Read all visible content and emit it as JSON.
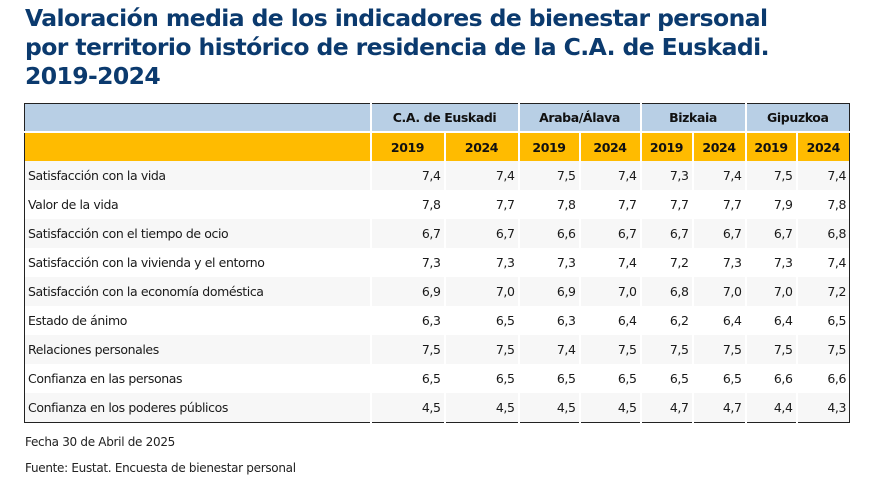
{
  "title": "Valoración media de los indicadores de bienestar personal por territorio histórico de residencia de la C.A. de Euskadi. 2019-2024",
  "table": {
    "regions": [
      "C.A. de Euskadi",
      "Araba/Álava",
      "Bizkaia",
      "Gipuzkoa"
    ],
    "years": [
      "2019",
      "2024",
      "2019",
      "2024",
      "2019",
      "2024",
      "2019",
      "2024"
    ],
    "rows": [
      {
        "label": "Satisfacción con la vida",
        "values": [
          "7,4",
          "7,4",
          "7,5",
          "7,4",
          "7,3",
          "7,4",
          "7,5",
          "7,4"
        ]
      },
      {
        "label": "Valor de la vida",
        "values": [
          "7,8",
          "7,7",
          "7,8",
          "7,7",
          "7,7",
          "7,7",
          "7,9",
          "7,8"
        ]
      },
      {
        "label": "Satisfacción con el tiempo de ocio",
        "values": [
          "6,7",
          "6,7",
          "6,6",
          "6,7",
          "6,7",
          "6,7",
          "6,7",
          "6,8"
        ]
      },
      {
        "label": "Satisfacción con la vivienda y el entorno",
        "values": [
          "7,3",
          "7,3",
          "7,3",
          "7,4",
          "7,2",
          "7,3",
          "7,3",
          "7,4"
        ]
      },
      {
        "label": "Satisfacción con la economía doméstica",
        "values": [
          "6,9",
          "7,0",
          "6,9",
          "7,0",
          "6,8",
          "7,0",
          "7,0",
          "7,2"
        ]
      },
      {
        "label": "Estado de ánimo",
        "values": [
          "6,3",
          "6,5",
          "6,3",
          "6,4",
          "6,2",
          "6,4",
          "6,4",
          "6,5"
        ]
      },
      {
        "label": "Relaciones personales",
        "values": [
          "7,5",
          "7,5",
          "7,4",
          "7,5",
          "7,5",
          "7,5",
          "7,5",
          "7,5"
        ]
      },
      {
        "label": "Confianza en las personas",
        "values": [
          "6,5",
          "6,5",
          "6,5",
          "6,5",
          "6,5",
          "6,5",
          "6,6",
          "6,6"
        ]
      },
      {
        "label": "Confianza en los poderes públicos",
        "values": [
          "4,5",
          "4,5",
          "4,5",
          "4,5",
          "4,7",
          "4,7",
          "4,4",
          "4,3"
        ]
      }
    ]
  },
  "footer": {
    "date": "Fecha 30 de Abril de 2025",
    "source": "Fuente: Eustat. Encuesta de bienestar personal"
  },
  "colors": {
    "title": "#0b3a6e",
    "region_header_bg": "#b8cfe5",
    "year_header_bg": "#ffbb00",
    "row_stripe": "#f7f7f7"
  }
}
